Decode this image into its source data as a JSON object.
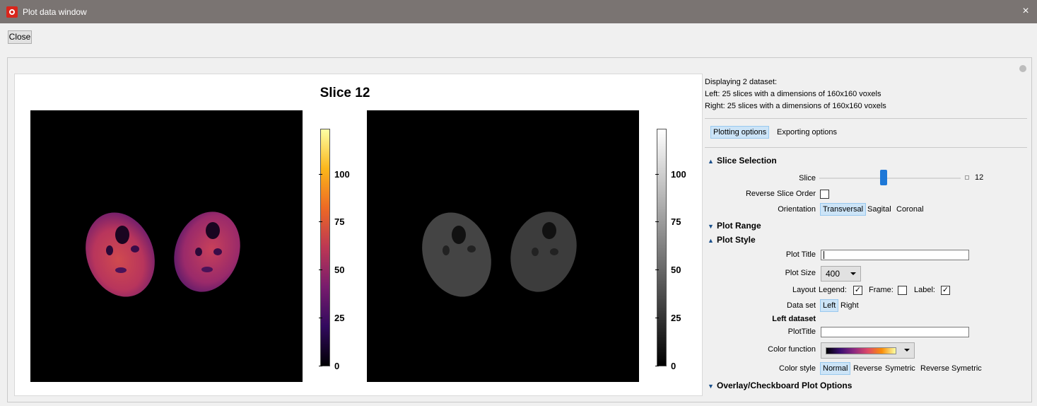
{
  "window": {
    "title": "Plot data window",
    "close_icon": "×"
  },
  "toolbar": {
    "close_label": "Close"
  },
  "plot": {
    "title": "Slice 12",
    "left_colorbar": {
      "colormap": "inferno",
      "ticks": [
        "100",
        "75",
        "50",
        "25",
        "0"
      ]
    },
    "right_colorbar": {
      "colormap": "gray",
      "ticks": [
        "100",
        "75",
        "50",
        "25",
        "0"
      ]
    }
  },
  "info": {
    "line1": "Displaying 2 dataset:",
    "line2": "Left: 25 slices with a dimensions of 160x160 voxels",
    "line3": "Right: 25 slices with a dimensions of 160x160 voxels"
  },
  "tabs": {
    "plotting": "Plotting options",
    "exporting": "Exporting options"
  },
  "slice_selection": {
    "header": "Slice Selection",
    "slice_label": "Slice",
    "slice_value": "12",
    "slice_fraction": 0.46,
    "reverse_label": "Reverse Slice Order",
    "orientation_label": "Orientation",
    "orientations": [
      "Transversal",
      "Sagital",
      "Coronal"
    ]
  },
  "plot_range": {
    "header": "Plot Range"
  },
  "plot_style": {
    "header": "Plot Style",
    "title_label": "Plot Title",
    "title_value": "",
    "size_label": "Plot Size",
    "size_value": "400",
    "layout_label": "Layout",
    "legend_label": "Legend:",
    "legend_checked": "✓",
    "frame_label": "Frame:",
    "frame_checked": "",
    "label_label": "Label:",
    "label_checked": "✓",
    "dataset_label": "Data set",
    "datasets": [
      "Left",
      "Right"
    ],
    "left_dataset_header": "Left dataset",
    "plottitle_label": "PlotTitle",
    "plottitle_value": "",
    "color_function_label": "Color function",
    "color_style_label": "Color style",
    "color_styles": [
      "Normal",
      "Reverse",
      "Symetric",
      "Reverse Symetric"
    ]
  },
  "overlay": {
    "header": "Overlay/Checkboard Plot Options"
  },
  "colors": {
    "accent": "#1e78d7",
    "selected_bg": "#cce4f7",
    "titlebar": "#7a7472"
  }
}
